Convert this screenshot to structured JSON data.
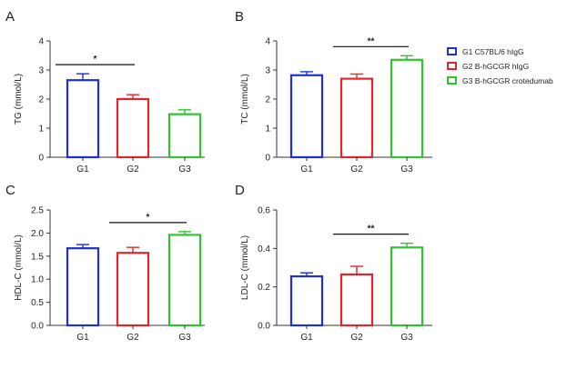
{
  "colors": {
    "G1": "#1f2fd6",
    "G2": "#e0262b",
    "G3": "#2fc42f",
    "axis": "#333333"
  },
  "legend": {
    "placement": "right",
    "items": [
      {
        "label": "G1 C57BL/6 hIgG",
        "color": "#1f2fd6"
      },
      {
        "label": "G2 B-hGCGR hIgG",
        "color": "#e0262b"
      },
      {
        "label": "G3 B-hGCGR crotedumab",
        "color": "#2fc42f"
      }
    ]
  },
  "chart_data": [
    {
      "panel": "A",
      "type": "bar",
      "grid": false,
      "categories": [
        "G1",
        "G2",
        "G3"
      ],
      "values": [
        2.65,
        2.0,
        1.48
      ],
      "errors": [
        0.22,
        0.15,
        0.15
      ],
      "ylabel": "TG (mmol/L)",
      "ylim": [
        0,
        4
      ],
      "yticks": [
        "0",
        "1",
        "2",
        "3",
        "4"
      ],
      "significance": [
        {
          "from": "G1",
          "to": "G2",
          "label": "*"
        }
      ]
    },
    {
      "panel": "B",
      "type": "bar",
      "grid": false,
      "categories": [
        "G1",
        "G2",
        "G3"
      ],
      "values": [
        2.82,
        2.7,
        3.35
      ],
      "errors": [
        0.12,
        0.16,
        0.14
      ],
      "ylabel": "TC (mmol/L)",
      "ylim": [
        0,
        4
      ],
      "yticks": [
        "0",
        "1",
        "2",
        "3",
        "4"
      ],
      "significance": [
        {
          "from": "G2",
          "to": "G3",
          "label": "**"
        }
      ]
    },
    {
      "panel": "C",
      "type": "bar",
      "grid": false,
      "categories": [
        "G1",
        "G2",
        "G3"
      ],
      "values": [
        1.67,
        1.57,
        1.96
      ],
      "errors": [
        0.08,
        0.12,
        0.07
      ],
      "ylabel": "HDL-C (mmol/L)",
      "ylim": [
        0,
        2.5
      ],
      "yticks": [
        "0.0",
        "0.5",
        "1.0",
        "1.5",
        "2.0",
        "2.5"
      ],
      "significance": [
        {
          "from": "G2",
          "to": "G3",
          "label": "*"
        }
      ]
    },
    {
      "panel": "D",
      "type": "bar",
      "grid": false,
      "categories": [
        "G1",
        "G2",
        "G3"
      ],
      "values": [
        0.255,
        0.265,
        0.405
      ],
      "errors": [
        0.018,
        0.042,
        0.022
      ],
      "ylabel": "LDL-C (mmol/L)",
      "ylim": [
        0,
        0.6
      ],
      "yticks": [
        "0.0",
        "0.2",
        "0.4",
        "0.6"
      ],
      "significance": [
        {
          "from": "G2",
          "to": "G3",
          "label": "**"
        }
      ]
    }
  ]
}
